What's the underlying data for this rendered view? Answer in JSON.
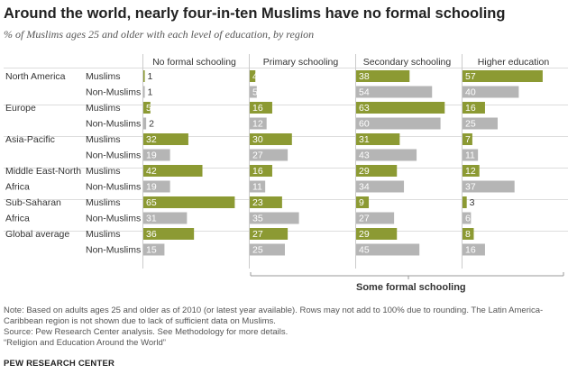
{
  "title": "Around the world, nearly four-in-ten Muslims have no formal schooling",
  "subtitle": "% of Muslims ages 25 and older with each level of education, by region",
  "group_label": "Some formal schooling",
  "notes": [
    "Note: Based on adults ages 25 and older as of 2010 (or latest year available). Rows may not add to 100% due to rounding. The Latin America-",
    "Caribbean region is not shown due to lack of sufficient data on Muslims.",
    "Source: Pew Research Center analysis. See Methodology for more details.",
    "“Religion and Education Around the World”"
  ],
  "org": "PEW RESEARCH CENTER",
  "colors": {
    "muslim": "#8c9a33",
    "non_muslim": "#b5b5b5",
    "grid": "#cccccc",
    "row_sep": "#dddddd"
  },
  "chart_data": {
    "type": "bar",
    "columns": [
      "No formal schooling",
      "Primary schooling",
      "Secondary schooling",
      "Higher education"
    ],
    "value_max": 70,
    "rows": [
      {
        "region": "North America",
        "group": "Muslims",
        "values": [
          1,
          4,
          38,
          57
        ]
      },
      {
        "region": "",
        "group": "Non-Muslims",
        "values": [
          1,
          5,
          54,
          40
        ]
      },
      {
        "region": "Europe",
        "group": "Muslims",
        "values": [
          5,
          16,
          63,
          16
        ]
      },
      {
        "region": "",
        "group": "Non-Muslims",
        "values": [
          2,
          12,
          60,
          25
        ]
      },
      {
        "region": "Asia-Pacific",
        "group": "Muslims",
        "values": [
          32,
          30,
          31,
          7
        ]
      },
      {
        "region": "",
        "group": "Non-Muslims",
        "values": [
          19,
          27,
          43,
          11
        ]
      },
      {
        "region": "Middle East-North Africa",
        "group": "Muslims",
        "values": [
          42,
          16,
          29,
          12
        ]
      },
      {
        "region": "",
        "group": "Non-Muslims",
        "values": [
          19,
          11,
          34,
          37
        ]
      },
      {
        "region": "Sub-Saharan Africa",
        "group": "Muslims",
        "values": [
          65,
          23,
          9,
          3
        ]
      },
      {
        "region": "",
        "group": "Non-Muslims",
        "values": [
          31,
          35,
          27,
          6
        ]
      },
      {
        "region": "Global average",
        "group": "Muslims",
        "values": [
          36,
          27,
          29,
          8
        ]
      },
      {
        "region": "",
        "group": "Non-Muslims",
        "values": [
          15,
          25,
          45,
          16
        ]
      }
    ]
  }
}
